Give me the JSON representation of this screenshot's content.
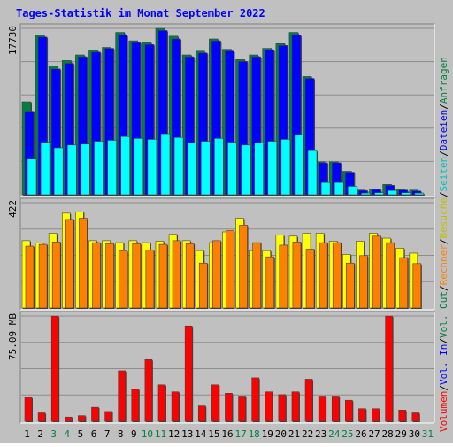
{
  "chart_data": {
    "title": "Tages-Statistik im Monat September 2022",
    "type": "bar",
    "categories": [
      "1",
      "2",
      "3",
      "4",
      "5",
      "6",
      "7",
      "8",
      "9",
      "10",
      "11",
      "12",
      "13",
      "14",
      "15",
      "16",
      "17",
      "18",
      "19",
      "20",
      "21",
      "22",
      "23",
      "24",
      "25",
      "26",
      "27",
      "28",
      "29",
      "30",
      "31"
    ],
    "weekend_days": [
      "3",
      "4",
      "10",
      "11",
      "17",
      "18",
      "24",
      "25",
      "31"
    ],
    "panels": [
      {
        "id": "requests",
        "ymax_label": "17730",
        "ymax": 17730,
        "grid": true,
        "series": [
          {
            "name": "Anfragen",
            "color": "#008040",
            "values": [
              9900,
              17000,
              13700,
              14300,
              14900,
              15400,
              15700,
              17300,
              16400,
              16200,
              17730,
              16900,
              14900,
              15300,
              16600,
              15500,
              14400,
              14900,
              15600,
              16100,
              17300,
              12600,
              3500,
              3500,
              2500,
              500,
              600,
              1100,
              600,
              500,
              0
            ]
          },
          {
            "name": "Dateien",
            "color": "#0000ff",
            "values": [
              8900,
              16800,
              13400,
              14000,
              14700,
              15200,
              15600,
              17000,
              16200,
              16000,
              17500,
              16600,
              14700,
              15100,
              16400,
              15300,
              14200,
              14700,
              15400,
              15900,
              17000,
              12400,
              3400,
              3400,
              2400,
              450,
              550,
              1000,
              500,
              400,
              0
            ]
          },
          {
            "name": "Seiten",
            "color": "#00ffff",
            "values": [
              3800,
              5600,
              5000,
              5300,
              5400,
              5700,
              5800,
              6200,
              6000,
              5900,
              6500,
              6100,
              5500,
              5700,
              6000,
              5600,
              5300,
              5500,
              5700,
              5900,
              6400,
              4700,
              1300,
              1300,
              900,
              180,
              220,
              450,
              220,
              180,
              0
            ]
          }
        ]
      },
      {
        "id": "visits",
        "ymax_label": "422",
        "ymax": 422,
        "grid": true,
        "series": [
          {
            "name": "Besuche",
            "color": "#ffff00",
            "values": [
              270,
              260,
              300,
              380,
              385,
              270,
              270,
              262,
              270,
              262,
              268,
              295,
              270,
              230,
              262,
              305,
              360,
              230,
              230,
              292,
              288,
              300,
              300,
              268,
              215,
              268,
              300,
              280,
              240,
              220,
              0
            ]
          },
          {
            "name": "Rechner",
            "color": "#ff8000",
            "values": [
              248,
              255,
              265,
              355,
              360,
              262,
              258,
              230,
              258,
              232,
              255,
              270,
              258,
              180,
              270,
              310,
              332,
              262,
              205,
              252,
              265,
              236,
              262,
              262,
              180,
              210,
              288,
              262,
              202,
              178,
              0
            ]
          }
        ]
      },
      {
        "id": "volume",
        "ymax_label": "75.09 MB",
        "ymax": 75.09,
        "grid": true,
        "series": [
          {
            "name": "Volumen",
            "color": "#ff0000",
            "values": [
              17,
              6,
              75,
              3,
              4,
              10,
              7,
              36,
              23,
              44,
              26,
              21,
              68,
              11,
              26,
              20,
              18,
              31,
              21,
              19,
              21,
              30,
              18,
              18,
              15,
              9,
              9,
              75,
              8,
              6,
              0
            ]
          },
          {
            "name": "Vol. In",
            "color": "#0000ff",
            "values": [
              0,
              0,
              0,
              0,
              0,
              0,
              0,
              0,
              0,
              0,
              0,
              0,
              0,
              0,
              0,
              0,
              0,
              0,
              0,
              0,
              0,
              0,
              0,
              0,
              0,
              0,
              0,
              0,
              0,
              0,
              0
            ]
          },
          {
            "name": "Vol. Out",
            "color": "#008040",
            "values": [
              0,
              0,
              0,
              0,
              0,
              0,
              0,
              0,
              0,
              0,
              0,
              0,
              0,
              0,
              0,
              0,
              0,
              0,
              0,
              0,
              0,
              0,
              0,
              0,
              0,
              0,
              0,
              0,
              0,
              0,
              0
            ]
          }
        ]
      }
    ],
    "right_legend": [
      {
        "label": "Anfragen",
        "color": "#008040"
      },
      {
        "label": "/",
        "color": "#000000"
      },
      {
        "label": "Dateien",
        "color": "#0000ff"
      },
      {
        "label": "/",
        "color": "#000000"
      },
      {
        "label": "Seiten",
        "color": "#00c0c0"
      },
      {
        "label": "/",
        "color": "#000000"
      },
      {
        "label": "Besuche",
        "color": "#c0c000"
      },
      {
        "label": "/",
        "color": "#000000"
      },
      {
        "label": "Rechner",
        "color": "#ff8000"
      },
      {
        "label": "/",
        "color": "#000000"
      },
      {
        "label": "Vol. Out",
        "color": "#008040"
      },
      {
        "label": "/",
        "color": "#000000"
      },
      {
        "label": "Vol. In",
        "color": "#0000ff"
      },
      {
        "label": "/",
        "color": "#000000"
      },
      {
        "label": "Volumen",
        "color": "#ff0000"
      }
    ],
    "colors": {
      "background": "#c0c0c0",
      "plot_background": "#c0c0c0",
      "title": "#0000ff",
      "weekday_label": "#000000",
      "weekend_label": "#008040",
      "shadow": "#808080"
    }
  }
}
